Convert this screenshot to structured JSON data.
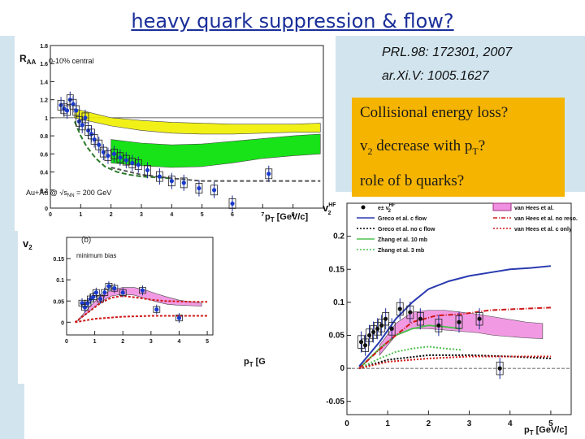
{
  "slide": {
    "title": "heavy quark suppression & flow?",
    "refs": [
      "PRL.98: 172301, 2007",
      "ar.Xi.V: 1005.1627"
    ],
    "questions": [
      "Collisional energy loss?",
      "v",
      "2",
      " decrease with p",
      "T",
      "?",
      "role of b quarks?"
    ],
    "colors": {
      "title": "#1a2f9a",
      "question_box": "#f5b400",
      "background_band": "#d2e5ef"
    }
  },
  "chart_data": [
    {
      "type": "scatter",
      "ylabel": "R",
      "ylabel_sub": "AA",
      "xlabel": "p",
      "xlabel_sub": "T",
      "xlabel_unit": "[GeV/c]",
      "annotations": [
        "0-10% central",
        "Au+Au @ √",
        "s",
        "NN",
        " = 200 GeV"
      ],
      "xlim": [
        0,
        9
      ],
      "ylim": [
        0,
        1.8
      ],
      "yticks": [
        "0",
        "0.2",
        "0.4",
        "0.6",
        "0.8",
        "1",
        "1.2",
        "1.4",
        "1.6",
        "1.8"
      ],
      "xticks": [
        "0",
        "1",
        "2",
        "3",
        "4",
        "5",
        "6",
        "7",
        "8"
      ],
      "points": {
        "x": [
          0.35,
          0.45,
          0.55,
          0.65,
          0.75,
          0.85,
          0.95,
          1.05,
          1.15,
          1.25,
          1.35,
          1.45,
          1.6,
          1.75,
          1.9,
          2.1,
          2.3,
          2.5,
          2.7,
          2.9,
          3.2,
          3.6,
          4.0,
          4.4,
          4.9,
          5.4,
          6.0,
          7.2
        ],
        "y": [
          1.14,
          1.1,
          1.08,
          1.2,
          1.15,
          1.08,
          0.96,
          0.92,
          1.0,
          0.86,
          0.82,
          0.76,
          0.7,
          0.62,
          0.58,
          0.6,
          0.56,
          0.53,
          0.5,
          0.48,
          0.42,
          0.35,
          0.3,
          0.28,
          0.22,
          0.2,
          0.05,
          0.38
        ]
      },
      "bands": [
        {
          "color": "#f0f000",
          "x": [
            0.8,
            2,
            3,
            4,
            5,
            6,
            7,
            8,
            8.9
          ],
          "lo": [
            1.0,
            0.91,
            0.86,
            0.83,
            0.82,
            0.82,
            0.83,
            0.84,
            0.84
          ],
          "hi": [
            1.1,
            1.0,
            0.97,
            0.95,
            0.94,
            0.93,
            0.93,
            0.93,
            0.94
          ]
        },
        {
          "color": "#00e000",
          "x": [
            2,
            3,
            4,
            5,
            6,
            7,
            8,
            8.9
          ],
          "lo": [
            0.5,
            0.47,
            0.45,
            0.46,
            0.5,
            0.55,
            0.58,
            0.6
          ],
          "hi": [
            0.76,
            0.72,
            0.7,
            0.71,
            0.74,
            0.77,
            0.8,
            0.82
          ]
        }
      ],
      "curves": [
        {
          "color": "#2a7a2a",
          "dash": "6,3",
          "x": [
            0.8,
            1.0,
            1.2,
            1.5,
            1.8,
            2.2,
            2.6,
            3.0,
            4.0
          ],
          "y": [
            0.96,
            0.8,
            0.68,
            0.55,
            0.46,
            0.4,
            0.37,
            0.35,
            0.33
          ]
        },
        {
          "color": "#555555",
          "dash": "5,3",
          "x": [
            2.0,
            3.0,
            4.0,
            5.0,
            6.0,
            7.0,
            8.0,
            8.9
          ],
          "y": [
            0.45,
            0.37,
            0.33,
            0.3,
            0.3,
            0.3,
            0.3,
            0.3
          ]
        }
      ],
      "reference_line": 1.0
    },
    {
      "type": "scatter",
      "panel": "(b)",
      "annotation": "minimum bias",
      "ylabel": "v",
      "ylabel_sup": " ",
      "ylabel_sub": "2",
      "xlabel": "p",
      "xlabel_sub": "T",
      "xlabel_unit": "[G",
      "xlim": [
        0,
        5.2
      ],
      "ylim": [
        -0.03,
        0.2
      ],
      "yticks": [
        "0",
        "0.05",
        "0.1",
        "0.15"
      ],
      "xticks": [
        "0",
        "1",
        "2",
        "3",
        "4",
        "5"
      ],
      "points": {
        "x": [
          0.55,
          0.65,
          0.75,
          0.85,
          0.95,
          1.05,
          1.2,
          1.35,
          1.5,
          1.7,
          2.0,
          2.7,
          3.2,
          4.0
        ],
        "y": [
          0.045,
          0.035,
          0.045,
          0.055,
          0.06,
          0.07,
          0.055,
          0.07,
          0.085,
          0.08,
          0.07,
          0.075,
          0.03,
          0.01
        ]
      },
      "bands": [
        {
          "color": "#f090e0",
          "x": [
            0.4,
            0.8,
            1.2,
            1.6,
            2.0,
            2.4,
            2.8,
            3.2,
            3.6,
            4.0,
            4.4,
            4.8
          ],
          "lo": [
            0.003,
            0.025,
            0.048,
            0.062,
            0.066,
            0.064,
            0.056,
            0.048,
            0.042,
            0.04,
            0.039,
            0.038
          ],
          "hi": [
            0.005,
            0.035,
            0.062,
            0.076,
            0.082,
            0.082,
            0.076,
            0.067,
            0.059,
            0.052,
            0.048,
            0.045
          ]
        }
      ],
      "curves": [
        {
          "color": "#d01818",
          "dash": "3,2",
          "x": [
            0.3,
            0.8,
            1.2,
            1.6,
            2.0,
            2.5,
            3.0,
            3.5,
            4.0,
            4.5,
            5.0
          ],
          "y": [
            0.0,
            0.025,
            0.045,
            0.058,
            0.062,
            0.058,
            0.053,
            0.05,
            0.049,
            0.048,
            0.048
          ]
        },
        {
          "color": "#d01818",
          "dash": "3,2",
          "x": [
            0.3,
            1.0,
            2.0,
            3.0,
            4.0,
            5.0
          ],
          "y": [
            0.0,
            0.008,
            0.013,
            0.015,
            0.015,
            0.015
          ]
        }
      ]
    },
    {
      "type": "scatter",
      "ylabel": "v",
      "ylabel_sup": "HF",
      "ylabel_sub": "2",
      "xlabel": "p",
      "xlabel_sub": "T",
      "xlabel_unit": "[GeV/c]",
      "legend_placement": "top",
      "xlim": [
        0,
        5.5
      ],
      "ylim": [
        -0.07,
        0.25
      ],
      "yticks": [
        "-0.05",
        "0",
        "0.05",
        "0.1",
        "0.15",
        "0.2"
      ],
      "xticks": [
        "0",
        "1",
        "2",
        "3",
        "4",
        "5"
      ],
      "legend": [
        {
          "label": "e± v",
          "sup": "HF",
          "sub": "2",
          "color": "#000000",
          "kind": "point"
        },
        {
          "label": "Greco et al. c flow",
          "color": "#2a3ab0",
          "kind": "line"
        },
        {
          "label": "Greco et al. no c flow",
          "color": "#000000",
          "kind": "dotted"
        },
        {
          "label": "Zhang et al. 10 mb",
          "color": "#50c050",
          "kind": "line"
        },
        {
          "label": "Zhang et al. 3 mb",
          "color": "#50c050",
          "kind": "dotted"
        },
        {
          "label": "van Hees et al.",
          "color": "#f090e0",
          "kind": "box"
        },
        {
          "label": "van Hees et al. no reso.",
          "color": "#d01818",
          "kind": "dashdot"
        },
        {
          "label": "van Hees et al. c only",
          "color": "#d01818",
          "kind": "dotted"
        }
      ],
      "points": {
        "x": [
          0.35,
          0.45,
          0.55,
          0.65,
          0.75,
          0.85,
          0.95,
          1.1,
          1.3,
          1.55,
          1.8,
          2.25,
          2.75,
          3.25,
          3.75
        ],
        "y": [
          0.04,
          0.035,
          0.05,
          0.055,
          0.06,
          0.065,
          0.075,
          0.06,
          0.09,
          0.085,
          0.075,
          0.065,
          0.07,
          0.075,
          0.0
        ]
      },
      "bands": [
        {
          "color": "#f090e0",
          "x": [
            0.8,
            1.2,
            1.6,
            2.0,
            2.4,
            2.8,
            3.2,
            3.6,
            4.0,
            4.4,
            4.8
          ],
          "lo": [
            0.02,
            0.05,
            0.06,
            0.06,
            0.058,
            0.056,
            0.054,
            0.05,
            0.048,
            0.046,
            0.045
          ],
          "hi": [
            0.035,
            0.068,
            0.085,
            0.088,
            0.088,
            0.085,
            0.082,
            0.078,
            0.074,
            0.07,
            0.068
          ]
        }
      ],
      "curves": [
        {
          "color": "#2a3ab0",
          "dash": "",
          "x": [
            0.3,
            0.8,
            1.2,
            1.6,
            2.0,
            2.5,
            3.0,
            3.5,
            4.0,
            4.5,
            5.0
          ],
          "y": [
            0.003,
            0.04,
            0.075,
            0.1,
            0.12,
            0.132,
            0.14,
            0.145,
            0.15,
            0.152,
            0.155
          ]
        },
        {
          "color": "#000000",
          "dash": "2,2",
          "x": [
            0.3,
            1.0,
            2.0,
            3.0,
            4.0,
            5.0
          ],
          "y": [
            0.0,
            0.013,
            0.02,
            0.02,
            0.018,
            0.015
          ]
        },
        {
          "color": "#50c050",
          "dash": "",
          "x": [
            0.3,
            0.8,
            1.2,
            1.6,
            2.0,
            2.4,
            2.8
          ],
          "y": [
            0.0,
            0.03,
            0.05,
            0.06,
            0.065,
            0.063,
            0.06
          ]
        },
        {
          "color": "#50c050",
          "dash": "2,2",
          "x": [
            0.3,
            0.8,
            1.2,
            1.6,
            2.0,
            2.4,
            2.8
          ],
          "y": [
            0.0,
            0.015,
            0.025,
            0.03,
            0.033,
            0.03,
            0.028
          ]
        },
        {
          "color": "#d01818",
          "dash": "6,2,1,2",
          "x": [
            0.3,
            1.0,
            1.6,
            2.2,
            2.8,
            3.5,
            4.2,
            5.0
          ],
          "y": [
            0.0,
            0.04,
            0.07,
            0.08,
            0.082,
            0.088,
            0.09,
            0.092
          ]
        },
        {
          "color": "#d01818",
          "dash": "2,2",
          "x": [
            0.3,
            1.0,
            2.0,
            3.0,
            4.0,
            5.0
          ],
          "y": [
            0.0,
            0.01,
            0.015,
            0.018,
            0.018,
            0.018
          ]
        }
      ],
      "reference_line": 0.0
    }
  ]
}
